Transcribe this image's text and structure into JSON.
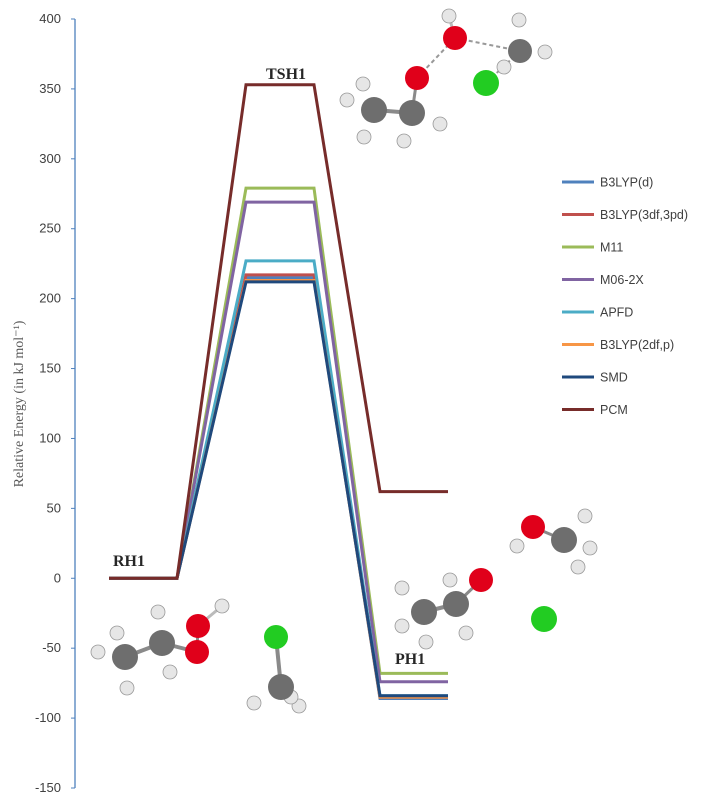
{
  "chart_data": {
    "type": "line",
    "ylabel": "Relative Energy (in kJ mol⁻¹)",
    "ylim": [
      -150,
      400
    ],
    "yticks": [
      "400",
      "350",
      "300",
      "250",
      "200",
      "150",
      "100",
      "50",
      "0",
      "-50",
      "-100",
      "-150"
    ],
    "grid": false,
    "legend_position": "right",
    "stages": [
      "RH1",
      "TSH1",
      "PH1"
    ],
    "series": [
      {
        "name": "B3LYP(d)",
        "color": "#4f81bd",
        "values": [
          0,
          215,
          -86
        ]
      },
      {
        "name": "B3LYP(3df,3pd)",
        "color": "#c0504d",
        "values": [
          0,
          217,
          -85
        ]
      },
      {
        "name": "M11",
        "color": "#9bbb59",
        "values": [
          0,
          279,
          -68
        ]
      },
      {
        "name": "M06-2X",
        "color": "#8064a2",
        "values": [
          0,
          269,
          -74
        ]
      },
      {
        "name": "APFD",
        "color": "#4bacc6",
        "values": [
          0,
          227,
          -84
        ]
      },
      {
        "name": "B3LYP(2df,p)",
        "color": "#f79646",
        "values": [
          0,
          213,
          -85
        ]
      },
      {
        "name": "SMD",
        "color": "#1f497d",
        "values": [
          0,
          212,
          -84
        ]
      },
      {
        "name": "PCM",
        "color": "#772c2a",
        "values": [
          0,
          353,
          62
        ]
      }
    ],
    "colors": {
      "axis": "#4f81bd",
      "atom_carbon": "#6e6e6e",
      "atom_hydrogen": "#e6e6e6",
      "atom_oxygen": "#e0001a",
      "atom_chlorine": "#22cc22"
    }
  }
}
